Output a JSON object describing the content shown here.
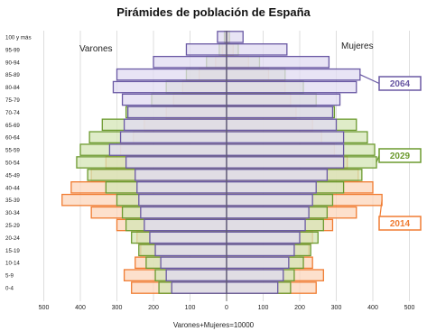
{
  "chart_data": {
    "type": "bar",
    "orientation": "horizontal",
    "layout": "population-pyramid",
    "title": "Pirámides de población de España",
    "left_label": "Varones",
    "right_label": "Mujeres",
    "footer": "Varones+Mujeres=10000",
    "xlim": [
      -500,
      500
    ],
    "xticks": [
      "500",
      "400",
      "300",
      "200",
      "100",
      "0",
      "100",
      "200",
      "300",
      "400",
      "500"
    ],
    "categories": [
      "0-4",
      "5-9",
      "10-14",
      "15-19",
      "20-24",
      "25-29",
      "30-34",
      "35-39",
      "40-44",
      "45-49",
      "50-54",
      "55-59",
      "60-64",
      "65-69",
      "70-74",
      "75-79",
      "80-84",
      "85-89",
      "90-94",
      "95-99",
      "100 y más"
    ],
    "grid": true,
    "series": [
      {
        "name": "2014",
        "color": "#f07c32",
        "fill": "#fcd5bb",
        "varones": [
          260,
          280,
          250,
          235,
          245,
          300,
          370,
          450,
          425,
          370,
          330,
          290,
          255,
          225,
          165,
          145,
          120,
          75,
          30,
          12,
          3
        ],
        "mujeres": [
          245,
          265,
          235,
          225,
          235,
          290,
          355,
          425,
          400,
          360,
          330,
          295,
          260,
          235,
          190,
          175,
          160,
          115,
          60,
          18,
          5
        ]
      },
      {
        "name": "2029",
        "color": "#6c9a2f",
        "fill": "#d4e6b6",
        "varones": [
          185,
          195,
          220,
          240,
          260,
          275,
          285,
          300,
          330,
          380,
          410,
          400,
          375,
          340,
          275,
          205,
          165,
          110,
          55,
          20,
          6
        ],
        "mujeres": [
          175,
          185,
          210,
          230,
          250,
          265,
          275,
          290,
          320,
          370,
          410,
          405,
          385,
          355,
          295,
          245,
          210,
          160,
          90,
          32,
          8
        ]
      },
      {
        "name": "2064",
        "color": "#6a59a4",
        "fill": "#e0dbf2",
        "varones": [
          150,
          165,
          180,
          195,
          210,
          225,
          235,
          240,
          245,
          250,
          275,
          320,
          290,
          280,
          270,
          285,
          310,
          300,
          200,
          110,
          25
        ],
        "mujeres": [
          140,
          155,
          170,
          185,
          200,
          215,
          225,
          235,
          245,
          275,
          320,
          320,
          320,
          300,
          290,
          310,
          355,
          365,
          280,
          165,
          45
        ]
      }
    ],
    "legend_labels": [
      "2064",
      "2029",
      "2014"
    ]
  }
}
